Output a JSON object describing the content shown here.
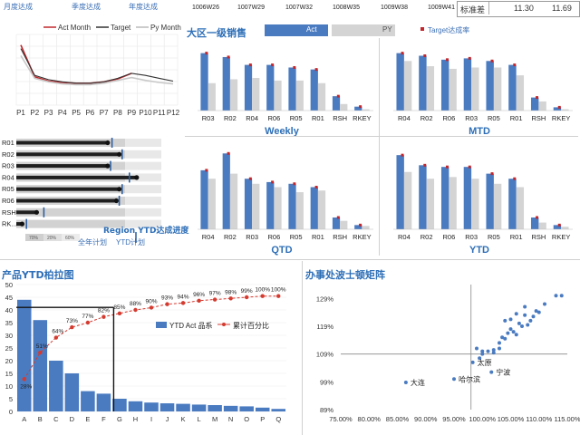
{
  "header": {
    "tabs": [
      "月度达成",
      "季度达成",
      "年度达成"
    ],
    "weeks": [
      "1006W26",
      "1007W29",
      "1007W32",
      "1008W35",
      "1009W38",
      "1009W41"
    ],
    "std_label": "标准差",
    "std_values": [
      "11.30",
      "11.69"
    ]
  },
  "sales_header": {
    "title": "大区一级销售",
    "legend_act": "Act",
    "legend_py": "PY",
    "legend_target": "Target达成率"
  },
  "colors": {
    "blue": "#4a7bc1",
    "gray": "#d4d4d4",
    "red": "#c0282d",
    "dark": "#333333"
  },
  "monthly_chart": {
    "legend": [
      "Act Month",
      "Target",
      "Py Month"
    ],
    "x_labels": [
      "P1",
      "P2",
      "P3",
      "P4",
      "P5",
      "P6",
      "P7",
      "P8",
      "P9",
      "P10",
      "P11",
      "P12"
    ]
  },
  "region_progress": {
    "rows": [
      "R01",
      "R02",
      "R03",
      "R04",
      "R05",
      "R06",
      "RSH",
      "RK..."
    ],
    "ytd": [
      0.63,
      0.71,
      0.63,
      0.83,
      0.71,
      0.69,
      0.14,
      0.04
    ],
    "target": [
      0.66,
      0.73,
      0.65,
      0.78,
      0.73,
      0.71,
      0.19,
      0.07
    ],
    "scale_labels": [
      "70%",
      "20%",
      "60%"
    ],
    "title": "Region YTD达成进度",
    "legend_full": "全年计划",
    "legend_ytd": "YTD计划"
  },
  "chart_data": [
    {
      "type": "line",
      "name": "monthly",
      "x": [
        "P1",
        "P2",
        "P3",
        "P4",
        "P5",
        "P6",
        "P7",
        "P8",
        "P9",
        "P10",
        "P11",
        "P12"
      ],
      "series": [
        {
          "name": "Act Month",
          "values": [
            85,
            40,
            34,
            32,
            31,
            31,
            33,
            37,
            45,
            null,
            null,
            null
          ]
        },
        {
          "name": "Target",
          "values": [
            80,
            42,
            36,
            33,
            31,
            31,
            33,
            38,
            45,
            42,
            38,
            34
          ]
        },
        {
          "name": "Py Month",
          "values": [
            70,
            38,
            33,
            30,
            29,
            29,
            31,
            35,
            39,
            35,
            32,
            30
          ]
        }
      ]
    },
    {
      "type": "bar",
      "name": "Weekly",
      "categories": [
        "R03",
        "R02",
        "R04",
        "R06",
        "R05",
        "R01",
        "RSH",
        "RKEY"
      ],
      "series": [
        {
          "name": "Act",
          "values": [
            88,
            82,
            70,
            70,
            66,
            63,
            22,
            6
          ]
        },
        {
          "name": "PY",
          "values": [
            42,
            48,
            50,
            46,
            46,
            42,
            10,
            2
          ]
        },
        {
          "name": "Target达成率",
          "values": [
            null,
            null,
            null,
            null,
            null,
            null,
            null,
            null
          ]
        }
      ],
      "ylim": [
        0,
        100
      ]
    },
    {
      "type": "bar",
      "name": "MTD",
      "categories": [
        "R04",
        "R02",
        "R06",
        "R03",
        "R05",
        "R01",
        "RSH",
        "RKEY"
      ],
      "series": [
        {
          "name": "Act",
          "values": [
            88,
            84,
            78,
            80,
            76,
            70,
            20,
            5
          ]
        },
        {
          "name": "PY",
          "values": [
            76,
            68,
            64,
            66,
            66,
            54,
            14,
            2
          ]
        }
      ],
      "ylim": [
        0,
        100
      ]
    },
    {
      "type": "bar",
      "name": "QTD",
      "categories": [
        "R04",
        "R02",
        "R03",
        "R06",
        "R05",
        "R01",
        "RSH",
        "RKEY"
      ],
      "series": [
        {
          "name": "Act",
          "values": [
            70,
            90,
            60,
            56,
            54,
            50,
            14,
            5
          ]
        },
        {
          "name": "PY",
          "values": [
            60,
            66,
            54,
            50,
            44,
            46,
            10,
            4
          ]
        }
      ],
      "ylim": [
        0,
        100
      ]
    },
    {
      "type": "bar",
      "name": "YTD",
      "categories": [
        "R04",
        "R02",
        "R06",
        "R03",
        "R05",
        "R01",
        "RSH",
        "RKEY"
      ],
      "series": [
        {
          "name": "Act",
          "values": [
            88,
            76,
            74,
            74,
            66,
            60,
            14,
            5
          ]
        },
        {
          "name": "PY",
          "values": [
            68,
            60,
            62,
            60,
            54,
            50,
            8,
            3
          ]
        }
      ],
      "ylim": [
        0,
        100
      ]
    },
    {
      "type": "bar",
      "name": "pareto",
      "title": "产品YTD柏拉图",
      "categories": [
        "A",
        "B",
        "C",
        "D",
        "E",
        "F",
        "G",
        "H",
        "I",
        "J",
        "K",
        "L",
        "M",
        "N",
        "O",
        "P",
        "Q"
      ],
      "series": [
        {
          "name": "YTD Act 品系",
          "values": [
            44,
            36,
            20,
            15,
            8,
            7,
            5,
            4,
            3.5,
            3.2,
            3,
            2.7,
            2.5,
            2.2,
            2,
            1.5,
            1
          ]
        },
        {
          "name": "累计百分比",
          "values": [
            28,
            51,
            64,
            73,
            77,
            82,
            85,
            88,
            90,
            93,
            94,
            96,
            97,
            98,
            99,
            100,
            100
          ]
        }
      ],
      "point_labels": [
        "28%",
        "51%",
        "64%",
        "73%",
        "77%",
        "82%",
        "85%",
        "88%",
        "90%",
        "93%",
        "94%",
        "96%",
        "97%",
        "98%",
        "99%",
        "100%",
        "100%"
      ],
      "y_ticks": [
        "0",
        "5",
        "10",
        "15",
        "20",
        "25",
        "30",
        "35",
        "40",
        "45",
        "50"
      ],
      "ylim": [
        0,
        50
      ],
      "y2lim": [
        0,
        110
      ]
    },
    {
      "type": "scatter",
      "title": "办事处波士顿矩阵",
      "x_ticks": [
        "75.00%",
        "80.00%",
        "85.00%",
        "90.00%",
        "95.00%",
        "100.00%",
        "105.00%",
        "110.00%",
        "115.00%"
      ],
      "y_ticks": [
        "89%",
        "99%",
        "109%",
        "119%",
        "129%"
      ],
      "xlim": [
        0.75,
        1.15
      ],
      "ylim": [
        0.89,
        1.34
      ],
      "labeled_points": [
        {
          "label": "大连",
          "x": 0.865,
          "y": 0.988
        },
        {
          "label": "哈尔滨",
          "x": 0.95,
          "y": 1.0
        },
        {
          "label": "太原",
          "x": 0.983,
          "y": 1.06
        },
        {
          "label": "宁波",
          "x": 1.016,
          "y": 1.025
        }
      ],
      "points": [
        [
          0.995,
          1.075
        ],
        [
          1.0,
          1.09
        ],
        [
          1.01,
          1.1
        ],
        [
          1.02,
          1.105
        ],
        [
          1.03,
          1.11
        ],
        [
          1.03,
          1.13
        ],
        [
          1.035,
          1.15
        ],
        [
          1.04,
          1.145
        ],
        [
          1.045,
          1.165
        ],
        [
          1.05,
          1.18
        ],
        [
          1.055,
          1.17
        ],
        [
          1.06,
          1.16
        ],
        [
          1.065,
          1.2
        ],
        [
          1.07,
          1.19
        ],
        [
          1.075,
          1.23
        ],
        [
          1.08,
          1.195
        ],
        [
          1.085,
          1.21
        ],
        [
          1.09,
          1.225
        ],
        [
          1.095,
          1.245
        ],
        [
          1.1,
          1.24
        ],
        [
          1.05,
          1.215
        ],
        [
          1.04,
          1.21
        ],
        [
          1.06,
          1.235
        ],
        [
          1.11,
          1.27
        ],
        [
          1.13,
          1.3
        ],
        [
          1.14,
          1.3
        ],
        [
          1.075,
          1.26
        ],
        [
          1.02,
          1.095
        ],
        [
          1.0,
          1.1
        ],
        [
          0.99,
          1.11
        ]
      ]
    }
  ]
}
